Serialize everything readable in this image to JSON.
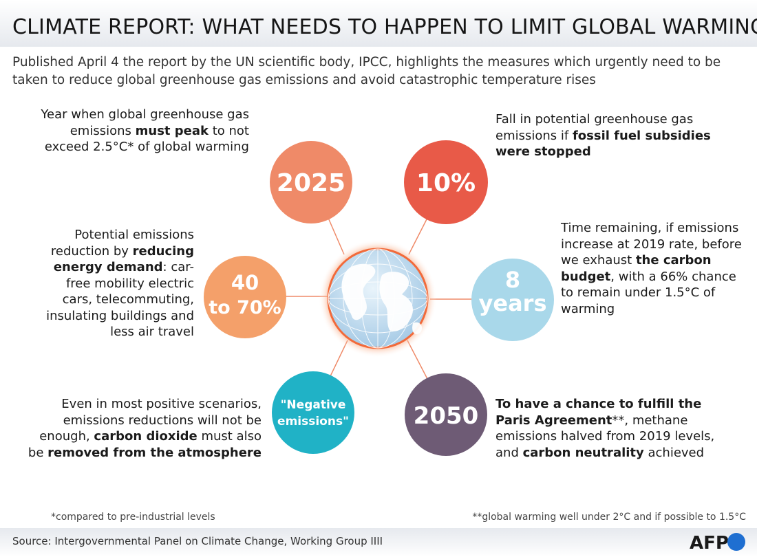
{
  "header": {
    "title": "CLIMATE REPORT: WHAT NEEDS TO HAPPEN TO LIMIT GLOBAL WARMING",
    "subtitle": "Published April 4 the report by the UN scientific body, IPCC, highlights the measures which urgently need to be taken to reduce global greenhouse gas emissions and avoid catastrophic temperature rises"
  },
  "nodes": {
    "peak": {
      "value": "2025",
      "color": "#ef8a68",
      "text": [
        "Year when global greenhouse gas emissions ",
        "must peak",
        " to not exceed 2.5°C* of global warming"
      ]
    },
    "subsidies": {
      "value": "10%",
      "color": "#e85a48",
      "text": [
        "Fall in potential greenhouse gas emissions if ",
        "fossil fuel subsidies were stopped"
      ]
    },
    "demand": {
      "value_line1": "40",
      "value_line2": "to 70%",
      "color": "#f4a06a",
      "text": [
        "Potential emissions reduction by ",
        "reducing energy demand",
        ": car-free mobility electric cars, telecommuting, insulating buildings and less air travel"
      ]
    },
    "budget": {
      "value_line1": "8",
      "value_line2": "years",
      "color": "#a9d8ea",
      "text_color": "#1e94c2",
      "text": [
        "Time remaining, if emissions increase at 2019 rate, before we exhaust ",
        "the carbon budget",
        ", with a 66% chance to remain under 1.5°C of warming"
      ]
    },
    "negative": {
      "value_line1": "\"Negative",
      "value_line2": "emissions\"",
      "color": "#20b2c6",
      "text": [
        "Even in most positive scenarios, emissions reductions will not be enough, ",
        "carbon dioxide",
        " must also be ",
        "removed from the atmosphere"
      ]
    },
    "paris": {
      "value": "2050",
      "color": "#6e5b75",
      "text": [
        "To have a chance to fulfill the Paris Agreement",
        "**, methane emissions halved from 2019 levels, and ",
        "carbon neutrality",
        " achieved"
      ]
    }
  },
  "notes": {
    "left": "*compared to pre-industrial levels",
    "right": "**global warming well under 2°C and if possible to 1.5°C"
  },
  "footer": {
    "source": "Source: Intergovernmental Panel on Climate Change, Working Group IIII",
    "logo": "AFP"
  },
  "icons": {
    "center": "globe-icon"
  }
}
